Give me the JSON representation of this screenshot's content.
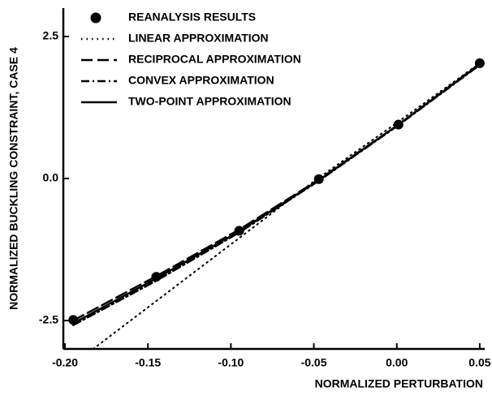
{
  "chart_data": {
    "type": "line",
    "xlabel": "NORMALIZED PERTURBATION",
    "ylabel": "NORMALIZED BUCKLING CONSTRAINT, CASE 4",
    "xlim": [
      -0.201,
      0.052
    ],
    "ylim": [
      -3.0,
      3.0
    ],
    "xticks": [
      {
        "value": -0.2,
        "label": "-0.20"
      },
      {
        "value": -0.15,
        "label": "-0.15"
      },
      {
        "value": -0.1,
        "label": "-0.10"
      },
      {
        "value": -0.05,
        "label": "-0.05"
      },
      {
        "value": 0.0,
        "label": "0.00"
      },
      {
        "value": 0.05,
        "label": "0.05"
      }
    ],
    "yticks": [
      2.5,
      {
        "value": 0.0,
        "label": "0.0"
      },
      -2.5
    ],
    "legend": "upper-left",
    "series": [
      {
        "name": "REANALYSIS RESULTS",
        "style": "marker",
        "color": "#000000",
        "x": [
          -0.195,
          -0.145,
          -0.095,
          -0.047,
          0.001,
          0.05
        ],
        "values": [
          -2.49,
          -1.73,
          -0.92,
          -0.01,
          0.95,
          2.03
        ]
      },
      {
        "name": "LINEAR APPROXIMATION",
        "style": "dotted",
        "color": "#000000",
        "x": [
          -0.183,
          -0.05,
          0.0,
          0.05
        ],
        "values": [
          -3.0,
          -0.05,
          0.98,
          2.03
        ]
      },
      {
        "name": "RECIPROCAL APPROXIMATION",
        "style": "dashed",
        "color": "#000000",
        "x": [
          -0.195,
          -0.145,
          -0.095,
          -0.047,
          0.001,
          0.05
        ],
        "values": [
          -2.5,
          -1.72,
          -0.9,
          -0.02,
          0.95,
          2.02
        ]
      },
      {
        "name": "CONVEX APPROXIMATION",
        "style": "dashdot",
        "color": "#000000",
        "x": [
          -0.195,
          -0.145,
          -0.095,
          -0.047,
          0.001,
          0.05
        ],
        "values": [
          -2.58,
          -1.8,
          -0.95,
          -0.04,
          0.94,
          2.0
        ]
      },
      {
        "name": "TWO-POINT APPROXIMATION",
        "style": "solid",
        "color": "#000000",
        "x": [
          -0.195,
          -0.145,
          -0.095,
          -0.047,
          0.001,
          0.05
        ],
        "values": [
          -2.55,
          -1.76,
          -0.93,
          -0.03,
          0.95,
          2.01
        ]
      }
    ]
  }
}
